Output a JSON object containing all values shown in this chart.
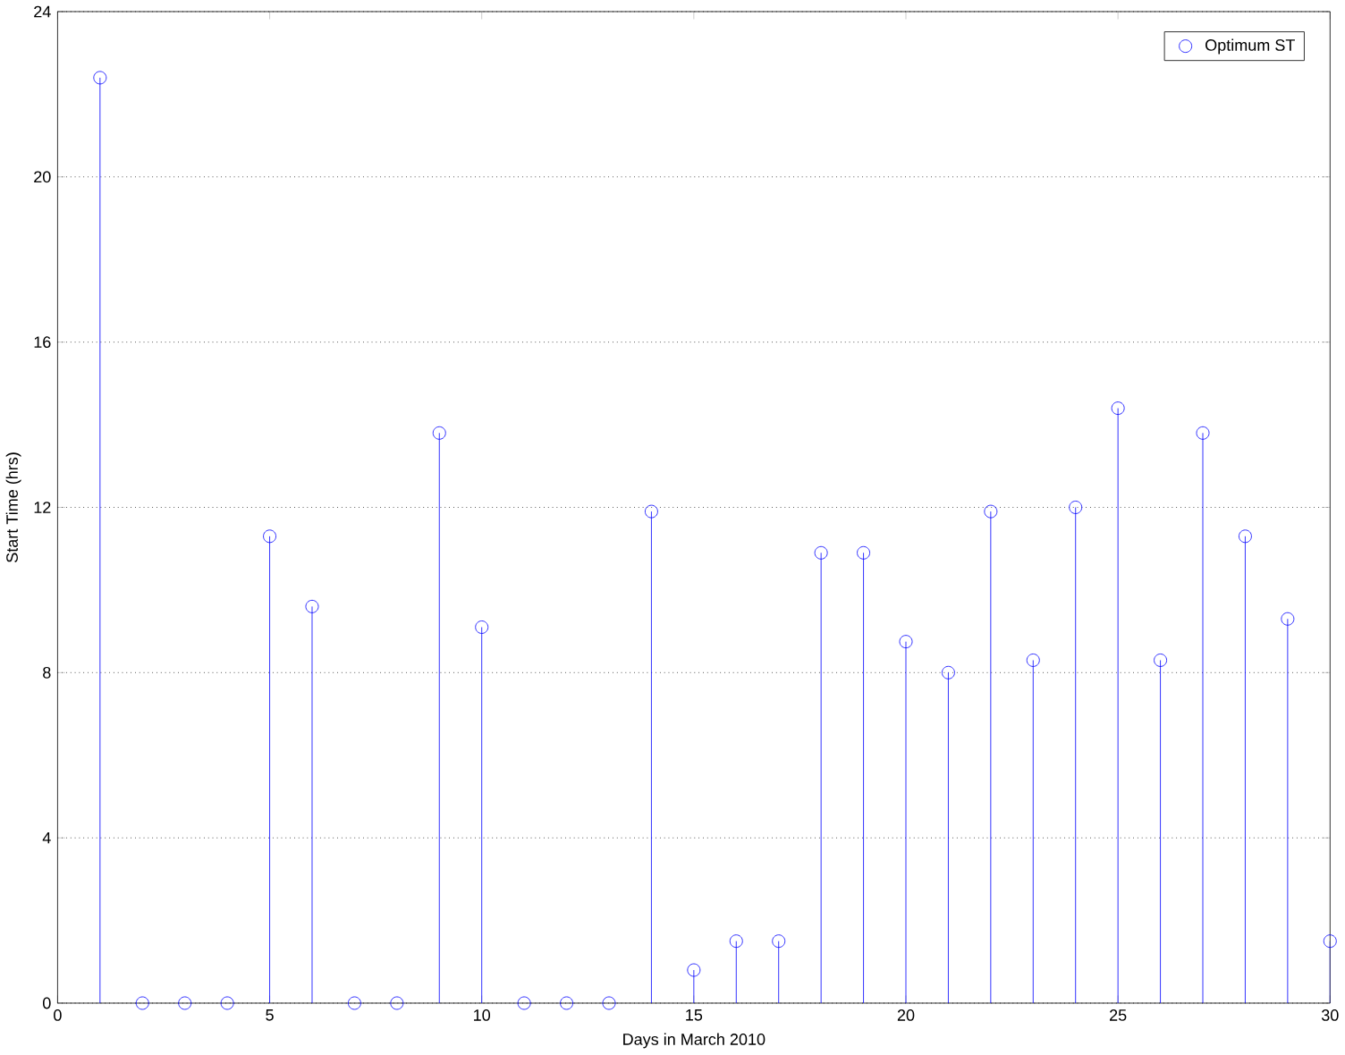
{
  "chart_data": {
    "type": "lollipop",
    "xlabel": "Days in March 2010",
    "ylabel": "Start Time (hrs)",
    "x": [
      1,
      2,
      3,
      4,
      5,
      6,
      7,
      8,
      9,
      10,
      11,
      12,
      13,
      14,
      15,
      16,
      17,
      18,
      19,
      20,
      21,
      22,
      23,
      24,
      25,
      26,
      27,
      28,
      29,
      30
    ],
    "series": [
      {
        "name": "Optimum ST",
        "color": "#0000ff",
        "values": [
          22.4,
          0,
          0,
          0,
          11.3,
          9.6,
          0,
          0,
          13.8,
          9.1,
          0,
          0,
          0,
          11.9,
          0.8,
          1.5,
          1.5,
          10.9,
          10.9,
          8.75,
          8.0,
          11.9,
          8.3,
          12.0,
          14.4,
          8.3,
          13.8,
          11.3,
          9.3,
          1.5
        ]
      }
    ],
    "xlim": [
      0,
      30
    ],
    "ylim": [
      0,
      24
    ],
    "xticks": [
      0,
      5,
      10,
      15,
      20,
      25,
      30
    ],
    "yticks": [
      0,
      4,
      8,
      12,
      16,
      20,
      24
    ],
    "grid": "y",
    "legend": "top right",
    "marker": "circle",
    "line_style": "solid"
  }
}
